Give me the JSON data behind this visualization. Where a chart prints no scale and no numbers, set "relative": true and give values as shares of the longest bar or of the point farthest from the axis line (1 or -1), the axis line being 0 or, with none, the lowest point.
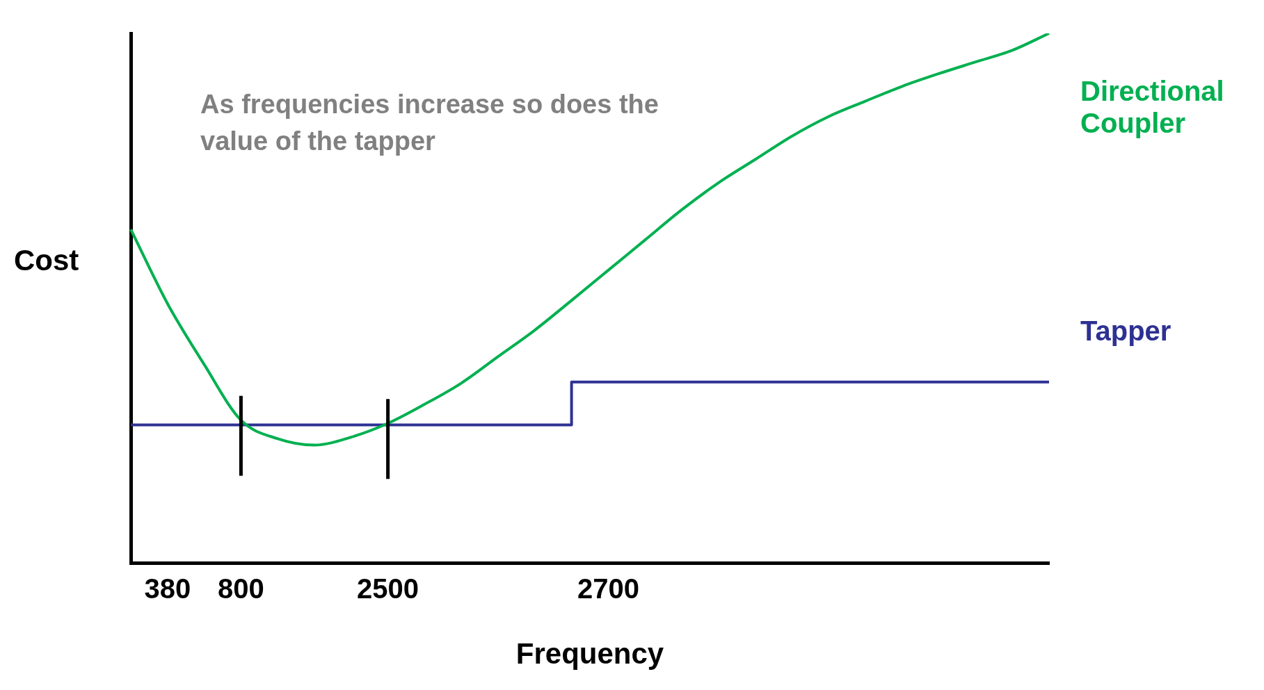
{
  "chart_data": {
    "type": "line",
    "relative": true,
    "xlabel": "Frequency",
    "ylabel": "Cost",
    "annotations": [
      "As frequencies increase so does the value of the tapper"
    ],
    "categories": [
      null,
      "380",
      null,
      "800",
      null,
      null,
      null,
      "2500",
      null,
      null,
      null,
      null,
      null,
      "2700",
      null,
      null,
      null,
      null,
      null,
      null,
      null,
      null,
      null,
      null,
      null,
      null
    ],
    "series": [
      {
        "name": "Directional Coupler",
        "color": "#00b050",
        "values": [
          0.63,
          0.49,
          0.375,
          0.27,
          0.235,
          0.223,
          0.238,
          0.264,
          0.3,
          0.34,
          0.39,
          0.44,
          0.496,
          0.553,
          0.61,
          0.667,
          0.718,
          0.762,
          0.806,
          0.843,
          0.872,
          0.9,
          0.924,
          0.946,
          0.968,
          1
        ]
      },
      {
        "name": "Tapper",
        "type": "step",
        "color": "#2e3192",
        "values": [
          0.261,
          0.261,
          0.261,
          0.261,
          0.261,
          0.261,
          0.261,
          0.261,
          0.261,
          0.261,
          0.261,
          0.261,
          0.261,
          0.342,
          0.342,
          0.342,
          0.342,
          0.342,
          0.342,
          0.342,
          0.342,
          0.342,
          0.342,
          0.342,
          0.342,
          0.342
        ]
      }
    ],
    "ref_lines": [
      {
        "axis": "x",
        "value": "800",
        "color": "#000000"
      },
      {
        "axis": "x",
        "value": "2500",
        "color": "#000000"
      }
    ],
    "grid": false,
    "legend": false,
    "marker": "none"
  }
}
